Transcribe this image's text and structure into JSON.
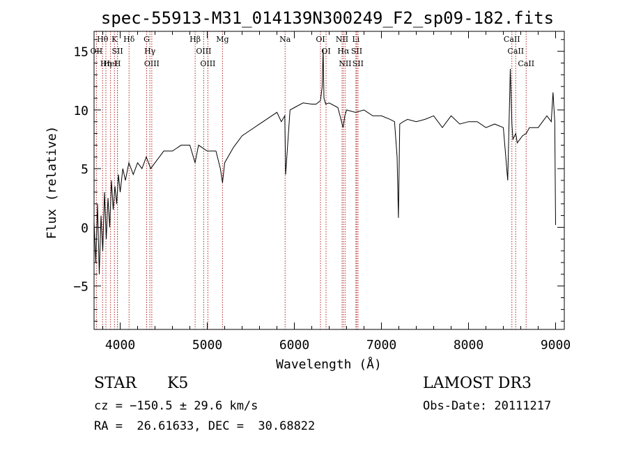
{
  "chart_data": {
    "type": "line",
    "title": "spec-55913-M31_014139N300249_F2_sp09-182.fits",
    "xlabel": "Wavelength (Å)",
    "ylabel": "Flux (relative)",
    "xlim": [
      3700,
      9100
    ],
    "ylim": [
      -8.7,
      16.7
    ],
    "xticks": [
      4000,
      5000,
      6000,
      7000,
      8000,
      9000
    ],
    "xtick_labels": [
      "4000",
      "5000",
      "6000",
      "7000",
      "8000",
      "9000"
    ],
    "yticks": [
      -5,
      0,
      5,
      10,
      15
    ],
    "ytick_labels": [
      "−5",
      "0",
      "5",
      "10",
      "15"
    ],
    "series": [
      {
        "name": "flux",
        "x": [
          3700,
          3720,
          3740,
          3760,
          3780,
          3800,
          3820,
          3840,
          3860,
          3880,
          3900,
          3920,
          3940,
          3960,
          3980,
          4000,
          4030,
          4060,
          4100,
          4150,
          4200,
          4250,
          4300,
          4350,
          4400,
          4450,
          4500,
          4600,
          4700,
          4800,
          4860,
          4900,
          5000,
          5100,
          5150,
          5175,
          5200,
          5300,
          5400,
          5500,
          5600,
          5700,
          5800,
          5850,
          5890,
          5900,
          5950,
          6000,
          6100,
          6200,
          6250,
          6300,
          6320,
          6330,
          6340,
          6360,
          6400,
          6500,
          6560,
          6580,
          6600,
          6700,
          6800,
          6900,
          7000,
          7100,
          7150,
          7180,
          7195,
          7210,
          7250,
          7300,
          7400,
          7500,
          7600,
          7700,
          7800,
          7900,
          8000,
          8100,
          8200,
          8300,
          8400,
          8450,
          8480,
          8498,
          8510,
          8542,
          8560,
          8620,
          8662,
          8700,
          8800,
          8850,
          8900,
          8950,
          8970,
          8990,
          9000
        ],
        "values": [
          0.5,
          -3.0,
          2.0,
          -4.0,
          1.0,
          -2.0,
          3.0,
          -1.0,
          2.5,
          0.0,
          4.0,
          1.5,
          3.5,
          2.0,
          4.5,
          3.0,
          5.0,
          4.0,
          5.5,
          4.5,
          5.5,
          5.0,
          6.0,
          5.0,
          5.5,
          6.0,
          6.5,
          6.5,
          7.0,
          7.0,
          5.5,
          7.0,
          6.5,
          6.5,
          5.0,
          3.8,
          5.5,
          6.8,
          7.8,
          8.3,
          8.8,
          9.3,
          9.8,
          9.0,
          9.5,
          4.5,
          10.0,
          10.2,
          10.6,
          10.5,
          10.5,
          10.8,
          12.0,
          15.2,
          11.0,
          10.5,
          10.6,
          10.2,
          8.5,
          9.5,
          10.0,
          9.8,
          10.0,
          9.5,
          9.5,
          9.2,
          9.0,
          6.0,
          0.8,
          8.8,
          9.0,
          9.2,
          9.0,
          9.2,
          9.5,
          8.5,
          9.5,
          8.8,
          9.0,
          9.0,
          8.5,
          8.8,
          8.5,
          4.0,
          13.5,
          8.8,
          7.5,
          8.0,
          7.2,
          7.8,
          8.0,
          8.5,
          8.5,
          9.0,
          9.5,
          9.0,
          11.5,
          9.0,
          0.2
        ]
      }
    ],
    "lines": [
      {
        "name": "Hθ",
        "wavelength": 3798
      },
      {
        "name": "OII",
        "wavelength": 3727
      },
      {
        "name": "Hη",
        "wavelength": 3836
      },
      {
        "name": "HeI",
        "wavelength": 3889
      },
      {
        "name": "K",
        "wavelength": 3934
      },
      {
        "name": "SII",
        "wavelength": 3969
      },
      {
        "name": "H",
        "wavelength": 3969
      },
      {
        "name": "Hδ",
        "wavelength": 4102
      },
      {
        "name": "G",
        "wavelength": 4304
      },
      {
        "name": "Hγ",
        "wavelength": 4341
      },
      {
        "name": "OIII",
        "wavelength": 4363
      },
      {
        "name": "Hβ",
        "wavelength": 4861
      },
      {
        "name": "OIII",
        "wavelength": 4959
      },
      {
        "name": "OIII",
        "wavelength": 5007
      },
      {
        "name": "Mg",
        "wavelength": 5175
      },
      {
        "name": "Na",
        "wavelength": 5894
      },
      {
        "name": "OI",
        "wavelength": 6300
      },
      {
        "name": "OI",
        "wavelength": 6364
      },
      {
        "name": "NII",
        "wavelength": 6548
      },
      {
        "name": "Hα",
        "wavelength": 6563
      },
      {
        "name": "NII",
        "wavelength": 6583
      },
      {
        "name": "Li",
        "wavelength": 6707
      },
      {
        "name": "SII",
        "wavelength": 6716
      },
      {
        "name": "SII",
        "wavelength": 6731
      },
      {
        "name": "CaII",
        "wavelength": 8498
      },
      {
        "name": "CaII",
        "wavelength": 8542
      },
      {
        "name": "CaII",
        "wavelength": 8662
      }
    ]
  },
  "info": {
    "object_class": "STAR",
    "subclass": "K5",
    "survey": "LAMOST DR3",
    "cz": "cz = −150.5 ± 29.6 km/s",
    "obs_date": "Obs-Date: 20111217",
    "coords": "RA =  26.61633, DEC =  30.68822"
  },
  "colors": {
    "line_marker": "#b22222",
    "spectrum": "#000000",
    "axis": "#000000"
  }
}
